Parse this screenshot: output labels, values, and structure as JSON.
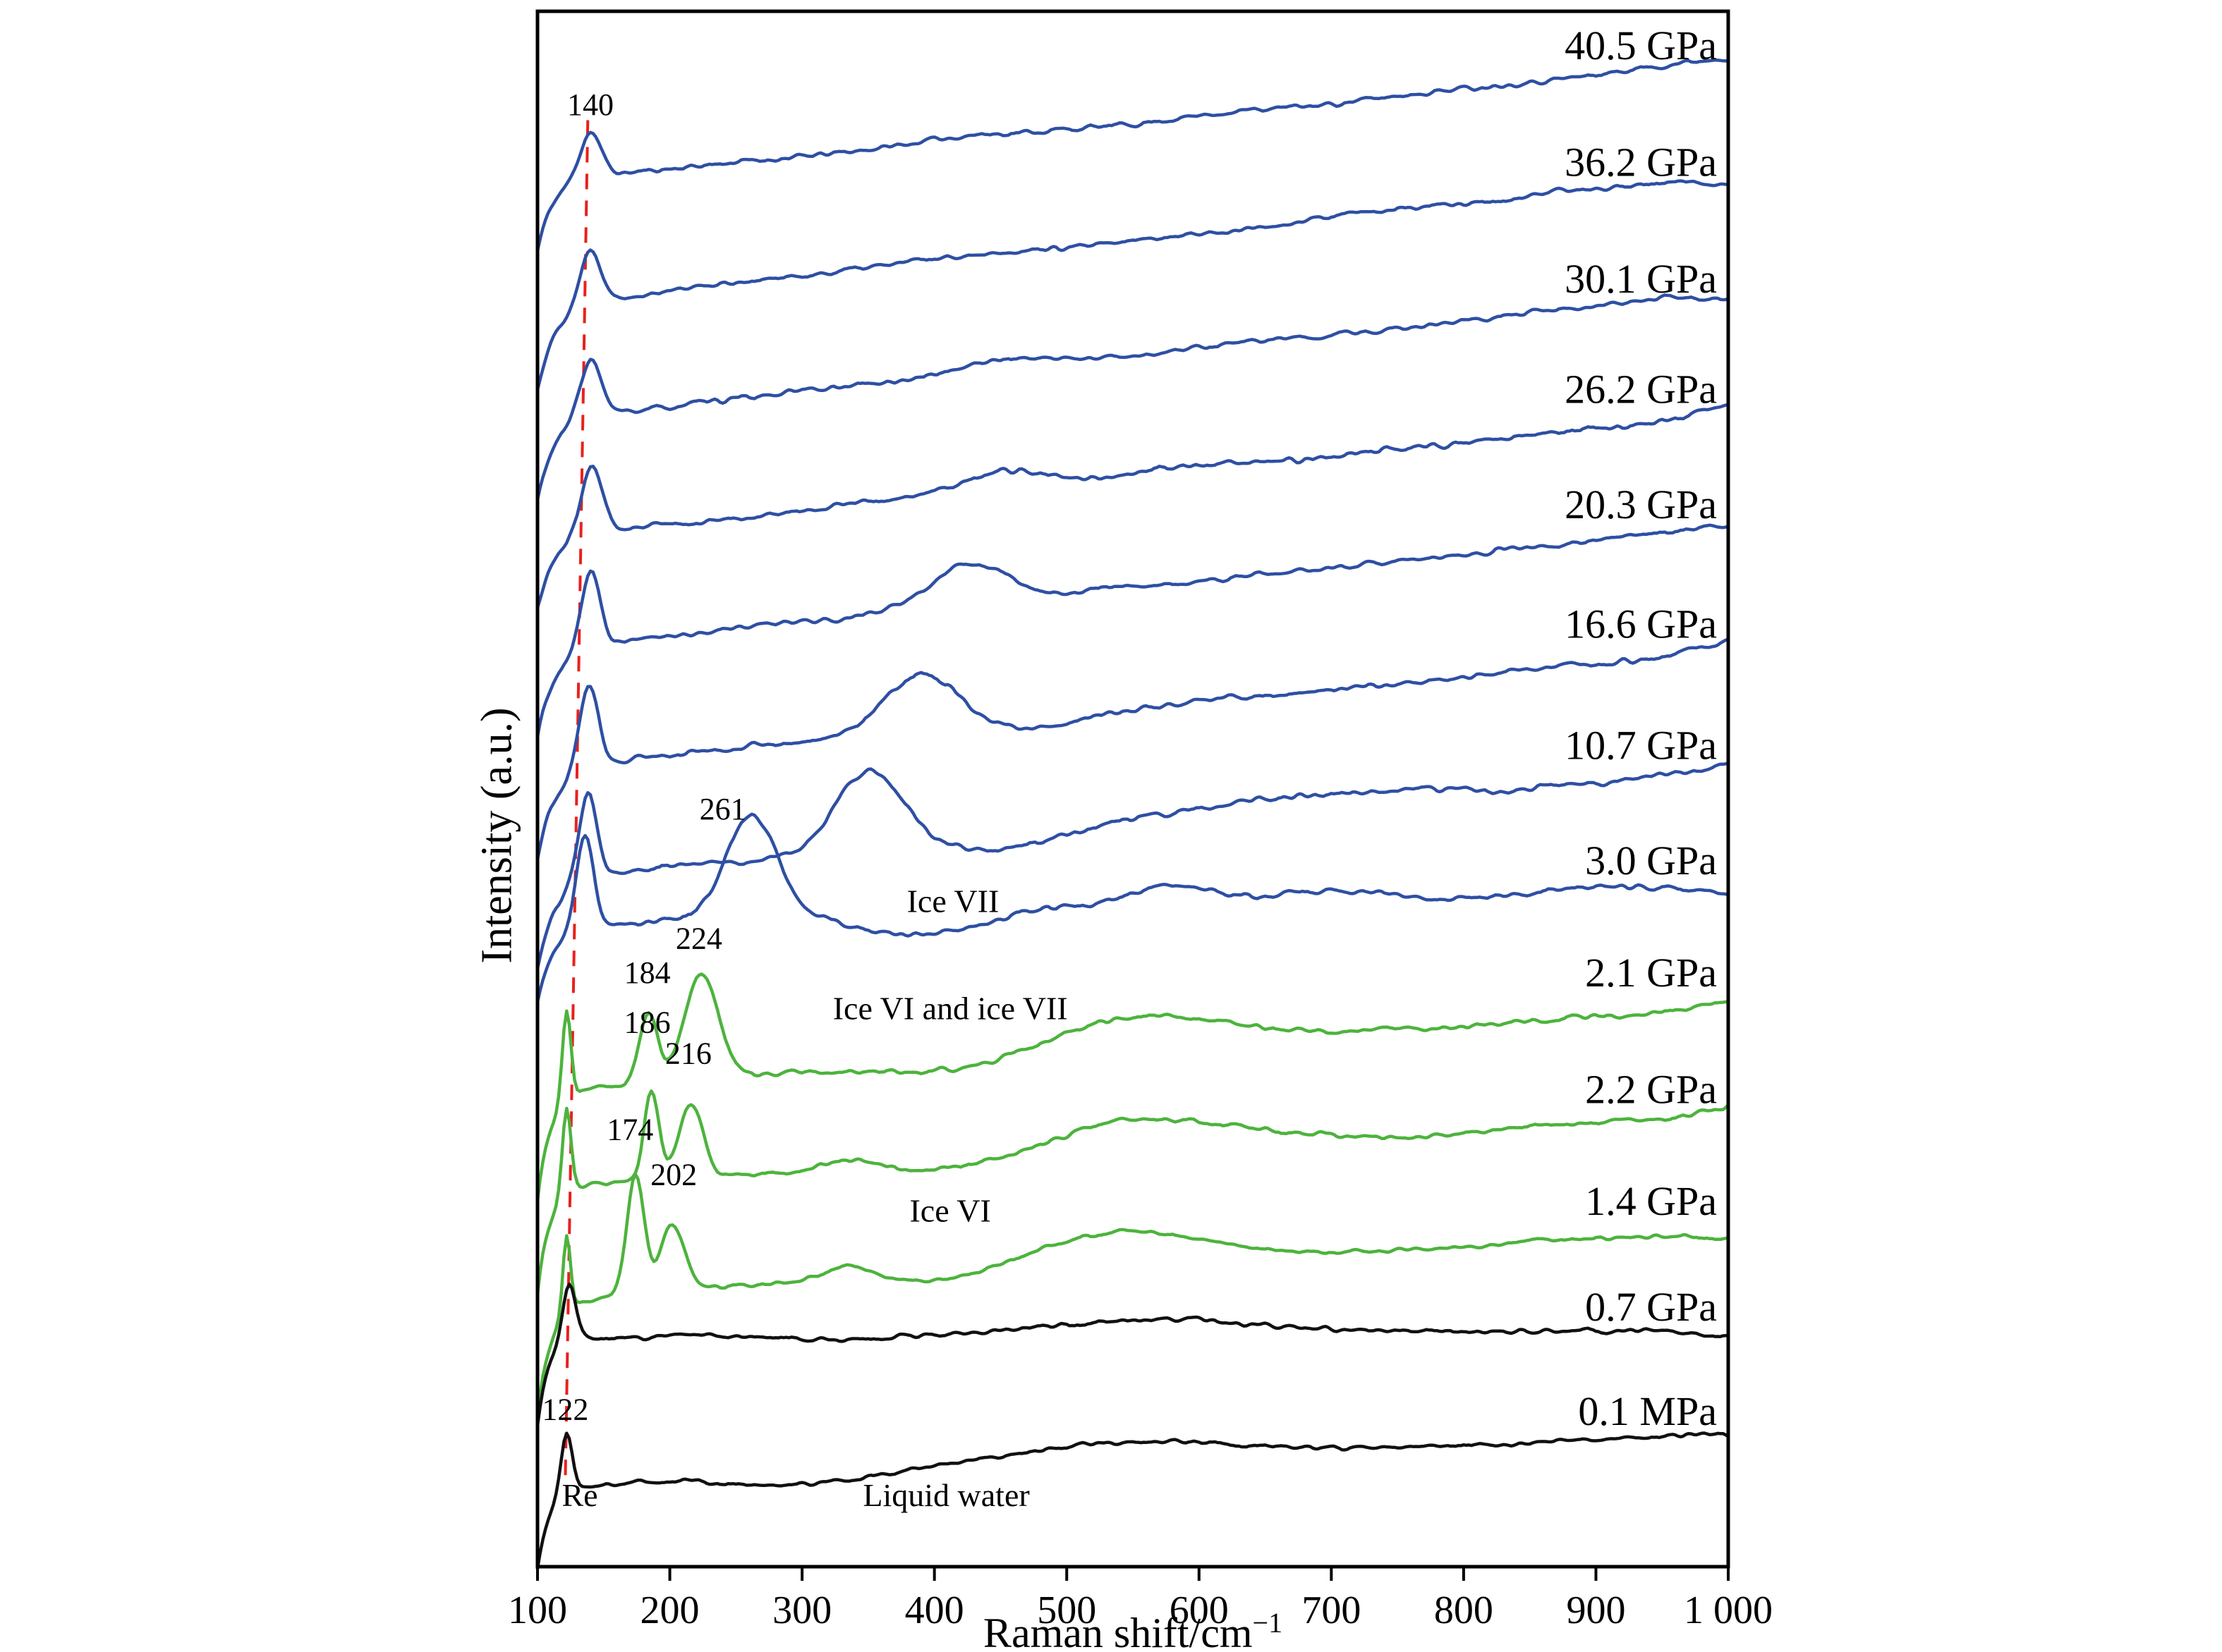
{
  "chart_data": {
    "type": "line",
    "title": "",
    "xlabel": "Raman shift/cm⁻¹",
    "xlabel_parts": [
      "Raman shift/cm",
      "−1"
    ],
    "ylabel": "Intensity (a.u.)",
    "xlim": [
      100,
      1000
    ],
    "grid": false,
    "legend_position": "none",
    "x_ticks": [
      {
        "v": 100,
        "label": "100"
      },
      {
        "v": 200,
        "label": "200"
      },
      {
        "v": 300,
        "label": "300"
      },
      {
        "v": 400,
        "label": "400"
      },
      {
        "v": 500,
        "label": "500"
      },
      {
        "v": 600,
        "label": "600"
      },
      {
        "v": 700,
        "label": "700"
      },
      {
        "v": 800,
        "label": "800"
      },
      {
        "v": 900,
        "label": "900"
      },
      {
        "v": 1000,
        "label": "1 000"
      }
    ],
    "colors": {
      "high_pressure_blue": "#2e4fa3",
      "ice_vi_green": "#4db33d",
      "low_pressure_black": "#111111",
      "guide_red": "#e8211d"
    },
    "guide_line": {
      "x_top": 138,
      "x_bottom": 121,
      "f_top": 0.93,
      "f_bottom": 0.055,
      "color": "#e8211d"
    },
    "series": [
      {
        "label": "40.5 GPa",
        "color": "#2e4fa3",
        "label_f": 0.978,
        "base_left": 0.89,
        "base_right": 0.968,
        "edge_drop": {
          "a": 0.05,
          "dec": 12
        },
        "peaks": [
          {
            "c": 140,
            "w": 11,
            "a": 0.03
          }
        ],
        "noise_fine": 0.0024,
        "noise_broad": 0.006,
        "seed": 11
      },
      {
        "label": "36.2 GPa",
        "color": "#2e4fa3",
        "label_f": 0.903,
        "base_left": 0.812,
        "base_right": 0.895,
        "edge_drop": {
          "a": 0.05,
          "dec": 12
        },
        "peaks": [
          {
            "c": 140,
            "w": 11,
            "a": 0.034
          }
        ],
        "noise_fine": 0.0024,
        "noise_broad": 0.006,
        "seed": 22
      },
      {
        "label": "30.1 GPa",
        "color": "#2e4fa3",
        "label_f": 0.828,
        "base_left": 0.737,
        "base_right": 0.82,
        "edge_drop": {
          "a": 0.05,
          "dec": 12
        },
        "peaks": [
          {
            "c": 140,
            "w": 11,
            "a": 0.038
          },
          {
            "c": 450,
            "w": 45,
            "a": 0.007
          }
        ],
        "noise_fine": 0.0024,
        "noise_broad": 0.006,
        "seed": 33
      },
      {
        "label": "26.2 GPa",
        "color": "#2e4fa3",
        "label_f": 0.757,
        "base_left": 0.662,
        "base_right": 0.742,
        "edge_drop": {
          "a": 0.05,
          "dec": 12
        },
        "peaks": [
          {
            "c": 141,
            "w": 11,
            "a": 0.044
          },
          {
            "c": 452,
            "w": 40,
            "a": 0.013
          }
        ],
        "noise_fine": 0.0024,
        "noise_broad": 0.006,
        "seed": 44
      },
      {
        "label": "20.3 GPa",
        "color": "#2e4fa3",
        "label_f": 0.683,
        "base_left": 0.59,
        "base_right": 0.668,
        "edge_drop": {
          "a": 0.05,
          "dec": 12
        },
        "peaks": [
          {
            "c": 140,
            "w": 10,
            "a": 0.05
          },
          {
            "c": 425,
            "w": 42,
            "a": 0.026
          }
        ],
        "noise_fine": 0.0024,
        "noise_broad": 0.006,
        "seed": 55
      },
      {
        "label": "16.6 GPa",
        "color": "#2e4fa3",
        "label_f": 0.606,
        "base_left": 0.513,
        "base_right": 0.59,
        "edge_drop": {
          "a": 0.05,
          "dec": 12
        },
        "peaks": [
          {
            "c": 139,
            "w": 10,
            "a": 0.053
          },
          {
            "c": 390,
            "w": 40,
            "a": 0.036
          },
          {
            "c": 470,
            "w": 50,
            "a": -0.006
          }
        ],
        "noise_fine": 0.0024,
        "noise_broad": 0.006,
        "seed": 66
      },
      {
        "label": "10.7 GPa",
        "color": "#2e4fa3",
        "label_f": 0.528,
        "base_left": 0.441,
        "base_right": 0.512,
        "edge_drop": {
          "a": 0.05,
          "dec": 12
        },
        "peaks": [
          {
            "c": 138,
            "w": 10,
            "a": 0.057
          },
          {
            "c": 350,
            "w": 36,
            "a": 0.052
          },
          {
            "c": 445,
            "w": 50,
            "a": -0.008
          },
          {
            "c": 660,
            "w": 120,
            "a": 0.01
          }
        ],
        "noise_fine": 0.0024,
        "noise_broad": 0.006,
        "seed": 77
      },
      {
        "label": "3.0 GPa",
        "color": "#2e4fa3",
        "label_f": 0.454,
        "phase": "Ice VII",
        "base_left": 0.413,
        "base_right": 0.437,
        "edge_drop": {
          "a": 0.055,
          "dec": 11
        },
        "peaks": [
          {
            "c": 136,
            "w": 9,
            "a": 0.062
          },
          {
            "c": 261,
            "w": 27,
            "a": 0.063
          },
          {
            "c": 390,
            "w": 80,
            "a": -0.014
          },
          {
            "c": 560,
            "w": 55,
            "a": 0.009
          }
        ],
        "noise_fine": 0.0024,
        "noise_broad": 0.006,
        "seed": 88
      },
      {
        "label": "2.1 GPa",
        "color": "#4db33d",
        "label_f": 0.382,
        "phase": "Ice VI and ice VII",
        "base_left": 0.307,
        "base_right": 0.36,
        "edge_drop": {
          "a": 0.07,
          "dec": 10
        },
        "peaks": [
          {
            "c": 122,
            "w": 4.5,
            "a": 0.058
          },
          {
            "c": 184,
            "w": 10,
            "a": 0.045
          },
          {
            "c": 224,
            "w": 18,
            "a": 0.068
          },
          {
            "c": 420,
            "w": 70,
            "a": -0.008
          },
          {
            "c": 555,
            "w": 100,
            "a": 0.02
          }
        ],
        "noise_fine": 0.0022,
        "noise_broad": 0.005,
        "seed": 99
      },
      {
        "label": "2.2 GPa",
        "color": "#4db33d",
        "label_f": 0.307,
        "base_left": 0.243,
        "base_right": 0.29,
        "edge_drop": {
          "a": 0.07,
          "dec": 10
        },
        "peaks": [
          {
            "c": 122,
            "w": 4.5,
            "a": 0.055
          },
          {
            "c": 186,
            "w": 8,
            "a": 0.058
          },
          {
            "c": 216,
            "w": 13,
            "a": 0.048
          },
          {
            "c": 335,
            "w": 25,
            "a": 0.006
          },
          {
            "c": 430,
            "w": 60,
            "a": -0.006
          },
          {
            "c": 555,
            "w": 100,
            "a": 0.021
          }
        ],
        "noise_fine": 0.0022,
        "noise_broad": 0.005,
        "seed": 110
      },
      {
        "label": "1.4 GPa",
        "color": "#4db33d",
        "label_f": 0.235,
        "phase": "Ice VI",
        "base_left": 0.172,
        "base_right": 0.216,
        "edge_drop": {
          "a": 0.07,
          "dec": 10
        },
        "peaks": [
          {
            "c": 122,
            "w": 4,
            "a": 0.05
          },
          {
            "c": 174,
            "w": 9,
            "a": 0.078
          },
          {
            "c": 202,
            "w": 13,
            "a": 0.043
          },
          {
            "c": 335,
            "w": 25,
            "a": 0.01
          },
          {
            "c": 430,
            "w": 55,
            "a": -0.006
          },
          {
            "c": 540,
            "w": 95,
            "a": 0.022
          }
        ],
        "noise_fine": 0.0022,
        "noise_broad": 0.005,
        "seed": 121
      },
      {
        "label": "0.7 GPa",
        "color": "#111111",
        "label_f": 0.167,
        "base_left": 0.148,
        "base_right": 0.152,
        "edge_drop": {
          "a": 0.06,
          "dec": 9
        },
        "peaks": [
          {
            "c": 124,
            "w": 7,
            "a": 0.036
          },
          {
            "c": 330,
            "w": 90,
            "a": -0.004
          },
          {
            "c": 560,
            "w": 130,
            "a": 0.008
          }
        ],
        "noise_fine": 0.0022,
        "noise_broad": 0.005,
        "seed": 132
      },
      {
        "label": "0.1 MPa",
        "color": "#111111",
        "label_f": 0.1,
        "phase": "Liquid water",
        "base_left": 0.052,
        "base_right": 0.086,
        "edge_drop": {
          "a": 0.05,
          "dec": 8
        },
        "peaks": [
          {
            "c": 122,
            "w": 6,
            "a": 0.038
          },
          {
            "c": 300,
            "w": 80,
            "a": -0.006
          },
          {
            "c": 540,
            "w": 120,
            "a": 0.012
          }
        ],
        "noise_fine": 0.0022,
        "noise_broad": 0.005,
        "seed": 143
      }
    ],
    "annotations": [
      {
        "text": "140",
        "x": 140,
        "f": 0.94,
        "size": 44
      },
      {
        "text": "261",
        "x": 240,
        "f": 0.487,
        "size": 44
      },
      {
        "text": "224",
        "x": 222,
        "f": 0.404,
        "size": 44
      },
      {
        "text": "184",
        "x": 183,
        "f": 0.382,
        "size": 44
      },
      {
        "text": "186",
        "x": 183,
        "f": 0.35,
        "size": 44
      },
      {
        "text": "216",
        "x": 214,
        "f": 0.33,
        "size": 44
      },
      {
        "text": "174",
        "x": 170,
        "f": 0.281,
        "size": 44
      },
      {
        "text": "202",
        "x": 203,
        "f": 0.252,
        "size": 44
      },
      {
        "text": "122",
        "x": 121,
        "f": 0.101,
        "size": 44
      },
      {
        "text": "Re",
        "x": 132,
        "f": 0.046,
        "size": 46
      },
      {
        "text": "Liquid water",
        "x": 409,
        "f": 0.046,
        "size": 46
      },
      {
        "text": "Ice VII",
        "x": 414,
        "f": 0.428,
        "size": 46
      },
      {
        "text": "Ice VI and ice VII",
        "x": 412,
        "f": 0.359,
        "size": 46
      },
      {
        "text": "Ice VI",
        "x": 412,
        "f": 0.229,
        "size": 46
      }
    ]
  }
}
